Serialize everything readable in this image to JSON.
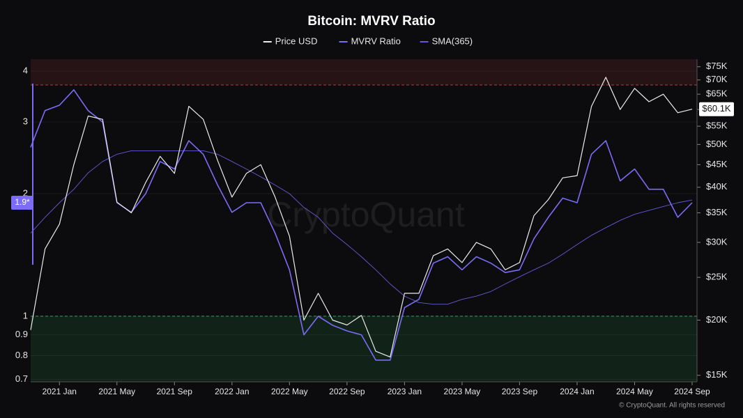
{
  "chart_data": {
    "type": "line",
    "title": "Bitcoin: MVRV Ratio",
    "watermark": "CryptoQuant",
    "footer": "© CryptoQuant. All rights reserved",
    "x": [
      "2020 Nov",
      "2020 Dec",
      "2021 Jan",
      "2021 Feb",
      "2021 Mar",
      "2021 Apr",
      "2021 May",
      "2021 Jun",
      "2021 Jul",
      "2021 Aug",
      "2021 Sep",
      "2021 Oct",
      "2021 Nov",
      "2021 Dec",
      "2022 Jan",
      "2022 Feb",
      "2022 Mar",
      "2022 Apr",
      "2022 May",
      "2022 Jun",
      "2022 Jul",
      "2022 Aug",
      "2022 Sep",
      "2022 Oct",
      "2022 Nov",
      "2022 Dec",
      "2023 Jan",
      "2023 Feb",
      "2023 Mar",
      "2023 Apr",
      "2023 May",
      "2023 Jun",
      "2023 Jul",
      "2023 Aug",
      "2023 Sep",
      "2023 Oct",
      "2023 Nov",
      "2023 Dec",
      "2024 Jan",
      "2024 Feb",
      "2024 Mar",
      "2024 Apr",
      "2024 May",
      "2024 Jun",
      "2024 Jul",
      "2024 Aug",
      "2024 Sep"
    ],
    "xticks": [
      "2021 Jan",
      "2021 May",
      "2021 Sep",
      "2022 Jan",
      "2022 May",
      "2022 Sep",
      "2023 Jan",
      "2023 May",
      "2023 Sep",
      "2024 Jan",
      "2024 May",
      "2024 Sep"
    ],
    "series": [
      {
        "name": "Price USD",
        "color": "#ececec",
        "axis": "y2",
        "width": 1.2,
        "last_label": "$60.1K",
        "values": [
          19000,
          29000,
          33000,
          45000,
          58000,
          57000,
          37000,
          35000,
          41000,
          47000,
          43000,
          61000,
          57000,
          46000,
          38000,
          43000,
          45000,
          38000,
          31000,
          20000,
          23000,
          20000,
          19500,
          20500,
          17000,
          16500,
          23000,
          23000,
          28000,
          29000,
          27000,
          30000,
          29000,
          26000,
          27000,
          34500,
          37500,
          42000,
          42500,
          61000,
          71000,
          60000,
          67000,
          62500,
          65000,
          59000,
          60100
        ]
      },
      {
        "name": "MVRV Ratio",
        "color": "#7c6cf7",
        "axis": "y",
        "width": 1.6,
        "last_label": "1.9*",
        "values": [
          2.6,
          3.2,
          3.3,
          3.6,
          3.2,
          3.0,
          1.9,
          1.8,
          2.0,
          2.4,
          2.3,
          2.7,
          2.5,
          2.1,
          1.8,
          1.9,
          1.9,
          1.6,
          1.3,
          0.9,
          1.0,
          0.95,
          0.92,
          0.9,
          0.78,
          0.78,
          1.05,
          1.1,
          1.35,
          1.4,
          1.3,
          1.4,
          1.35,
          1.28,
          1.3,
          1.55,
          1.75,
          1.95,
          1.9,
          2.5,
          2.7,
          2.15,
          2.3,
          2.05,
          2.05,
          1.75,
          1.9
        ]
      },
      {
        "name": "SMA(365)",
        "color": "#6659d6",
        "axis": "y",
        "width": 0.9,
        "values": [
          1.6,
          1.75,
          1.9,
          2.05,
          2.25,
          2.4,
          2.5,
          2.55,
          2.55,
          2.55,
          2.55,
          2.55,
          2.55,
          2.5,
          2.4,
          2.3,
          2.2,
          2.1,
          2.0,
          1.85,
          1.75,
          1.6,
          1.5,
          1.4,
          1.3,
          1.2,
          1.12,
          1.08,
          1.07,
          1.07,
          1.1,
          1.12,
          1.15,
          1.2,
          1.25,
          1.3,
          1.35,
          1.42,
          1.5,
          1.58,
          1.65,
          1.72,
          1.78,
          1.82,
          1.86,
          1.9,
          1.93
        ]
      }
    ],
    "ylim": [
      0.69,
      4.28
    ],
    "yticks": [
      0.7,
      0.8,
      0.9,
      1,
      2,
      3,
      4
    ],
    "ylog": true,
    "y2lim": [
      14500,
      78000
    ],
    "y2ticks": [
      {
        "value": 15000,
        "label": "$15K"
      },
      {
        "value": 20000,
        "label": "$20K"
      },
      {
        "value": 25000,
        "label": "$25K"
      },
      {
        "value": 30000,
        "label": "$30K"
      },
      {
        "value": 35000,
        "label": "$35K"
      },
      {
        "value": 40000,
        "label": "$40K"
      },
      {
        "value": 45000,
        "label": "$45K"
      },
      {
        "value": 50000,
        "label": "$50K"
      },
      {
        "value": 55000,
        "label": "$55K"
      },
      {
        "value": 60000,
        "label": "$60K"
      },
      {
        "value": 65000,
        "label": "$65K"
      },
      {
        "value": 70000,
        "label": "$70K"
      },
      {
        "value": 75000,
        "label": "$75K"
      }
    ],
    "y2log": true,
    "grid": true,
    "bands": [
      {
        "value": 3.7,
        "side": "above",
        "color": "#e0474c"
      },
      {
        "value": 1,
        "side": "below",
        "color": "#39c26a"
      }
    ]
  }
}
